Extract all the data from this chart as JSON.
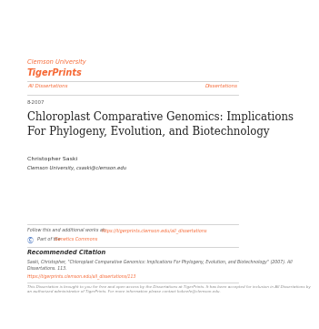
{
  "bg_color": "#ffffff",
  "header_university": "Clemson University",
  "header_tigerprints": "TigerPrints",
  "header_university_color": "#F66733",
  "header_tigerprints_color": "#F66733",
  "nav_left": "All Dissertations",
  "nav_right": "Dissertations",
  "nav_color": "#F66733",
  "date": "8-2007",
  "title": "Chloroplast Comparative Genomics: Implications\nFor Phylogeny, Evolution, and Biotechnology",
  "title_color": "#222222",
  "author": "Christopher Saski",
  "author_affil": "Clemson University, csaski@clemson.edu",
  "author_color": "#333333",
  "follow_text": "Follow this and additional works at: ",
  "follow_link": "https://tigerprints.clemson.edu/all_dissertations",
  "genetics_pre": "Part of the ",
  "genetics_link": "Genetics Commons",
  "link_color": "#F66733",
  "rec_citation_header": "Recommended Citation",
  "rec_citation_body": "Saski, Christopher, \"Chloroplast Comparative Genomics: Implications For Phylogeny, Evolution, and Biotechnology\" (2007). All\nDissertations. 113.",
  "rec_citation_link": "https://tigerprints.clemson.edu/all_dissertations/113",
  "disclaimer": "This Dissertation is brought to you for free and open access by the Dissertations at TigerPrints. It has been accepted for inclusion in All Dissertations by\nan authorized administrator of TigerPrints. For more information please contact kokeefe@clemson.edu.",
  "separator_color": "#cccccc"
}
